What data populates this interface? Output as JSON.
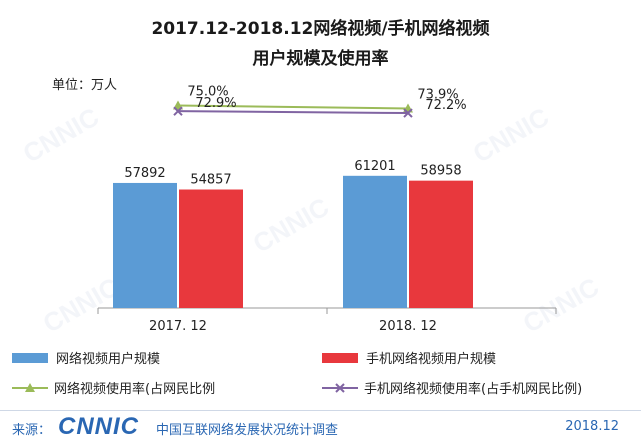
{
  "title_line1": "2017.12-2018.12网络视频/手机网络视频",
  "title_line2": "用户规模及使用率",
  "unit_label": "单位：万人",
  "chart_data": {
    "type": "bar",
    "categories": [
      "2017. 12",
      "2018. 12"
    ],
    "series": [
      {
        "name": "网络视频用户规模",
        "kind": "bar",
        "color": "#5b9bd5",
        "values": [
          57892,
          61201
        ],
        "labels": [
          "57892",
          "61201"
        ]
      },
      {
        "name": "手机网络视频用户规模",
        "kind": "bar",
        "color": "#e8383d",
        "values": [
          54857,
          58958
        ],
        "labels": [
          "54857",
          "58958"
        ]
      },
      {
        "name": "网络视频使用率(占网民比例",
        "kind": "line",
        "color": "#9bbb59",
        "marker": "triangle",
        "values": [
          75.0,
          73.9
        ],
        "labels": [
          "75.0%",
          "73.9%"
        ]
      },
      {
        "name": "手机网络视频使用率(占手机网民比例)",
        "kind": "line",
        "color": "#8064a2",
        "marker": "x",
        "values": [
          72.9,
          72.2
        ],
        "labels": [
          "72.9%",
          "72.2%"
        ]
      }
    ],
    "ylim": [
      0,
      100000
    ],
    "rate_ylim": [
      0,
      80
    ],
    "legend_position": "bottom"
  },
  "footer": {
    "source_label": "来源：",
    "logo_text": "CNNIC",
    "org_name": "中国互联网络发展状况统计调查",
    "date": "2018.12"
  },
  "watermark": "CNNIC"
}
